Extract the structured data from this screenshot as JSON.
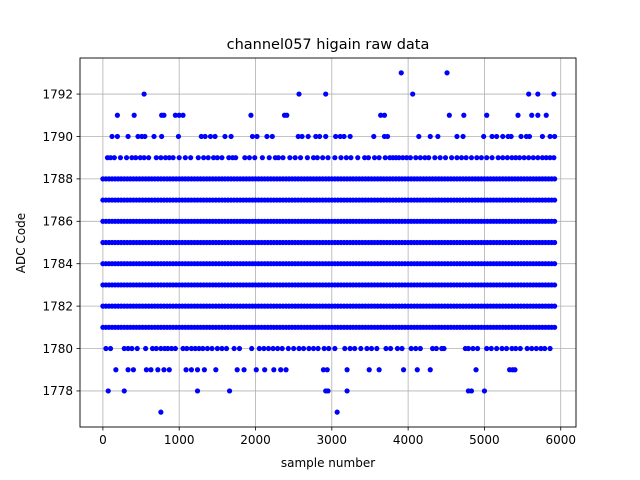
{
  "chart_data": {
    "type": "scatter",
    "title": "channel057 higain raw data",
    "xlabel": "sample number",
    "ylabel": "ADC Code",
    "xlim": [
      -300,
      6200
    ],
    "ylim": [
      1776.3,
      1793.7
    ],
    "x_ticks": [
      0,
      1000,
      2000,
      3000,
      4000,
      5000,
      6000
    ],
    "x_tick_labels": [
      "0",
      "1000",
      "2000",
      "3000",
      "4000",
      "5000",
      "6000"
    ],
    "y_ticks": [
      1778,
      1780,
      1782,
      1784,
      1786,
      1788,
      1790,
      1792
    ],
    "y_tick_labels": [
      "1778",
      "1780",
      "1782",
      "1784",
      "1786",
      "1788",
      "1790",
      "1792"
    ],
    "grid": true,
    "marker_color": "#0000ff",
    "n_samples": 5940,
    "dense_levels": [
      {
        "y": 1781,
        "x_range": [
          0,
          5940
        ]
      },
      {
        "y": 1782,
        "x_range": [
          0,
          5940
        ]
      },
      {
        "y": 1783,
        "x_range": [
          0,
          5940
        ]
      },
      {
        "y": 1784,
        "x_range": [
          0,
          5940
        ]
      },
      {
        "y": 1785,
        "x_range": [
          0,
          5940
        ]
      },
      {
        "y": 1786,
        "x_range": [
          0,
          5940
        ]
      },
      {
        "y": 1787,
        "x_range": [
          0,
          5940
        ]
      },
      {
        "y": 1788,
        "x_range": [
          0,
          5940
        ]
      }
    ],
    "sparse_levels": [
      {
        "y": 1789,
        "x": [
          60,
          100,
          150,
          230,
          310,
          380,
          430,
          490,
          540,
          600,
          700,
          760,
          820,
          870,
          920,
          1000,
          1080,
          1150,
          1250,
          1320,
          1380,
          1450,
          1500,
          1560,
          1650,
          1700,
          1740,
          1860,
          1920,
          1990,
          2090,
          2180,
          2260,
          2300,
          2360,
          2450,
          2520,
          2590,
          2680,
          2760,
          2810,
          2880,
          2950,
          3040,
          3120,
          3190,
          3250,
          3340,
          3430,
          3480,
          3560,
          3620,
          3700,
          3760,
          3800,
          3840,
          3880,
          3930,
          3980,
          4030,
          4100,
          4160,
          4220,
          4270,
          4350,
          4420,
          4490,
          4570,
          4640,
          4700,
          4760,
          4830,
          4900,
          4960,
          5030,
          5100,
          5180,
          5240,
          5300,
          5360,
          5410,
          5460,
          5520,
          5580,
          5640,
          5700,
          5760,
          5810,
          5860,
          5910
        ]
      },
      {
        "y": 1790,
        "x": [
          120,
          190,
          330,
          460,
          510,
          550,
          670,
          770,
          990,
          1290,
          1340,
          1410,
          1470,
          1600,
          1680,
          1960,
          2020,
          2150,
          2220,
          2560,
          2610,
          2690,
          2790,
          2840,
          2920,
          3050,
          3110,
          3160,
          3240,
          3550,
          3690,
          3730,
          4140,
          4290,
          4390,
          4640,
          4720,
          4990,
          5100,
          5160,
          5240,
          5310,
          5350,
          5480,
          5550,
          5590,
          5760,
          5860,
          5920
        ]
      },
      {
        "y": 1791,
        "x": [
          190,
          410,
          770,
          800,
          950,
          1000,
          1050,
          1940,
          2380,
          2410,
          3640,
          3690,
          4540,
          4730,
          5030,
          5440,
          5620,
          5700,
          5810
        ]
      },
      {
        "y": 1792,
        "x": [
          540,
          2570,
          2920,
          4060,
          5580,
          5700,
          5910
        ]
      },
      {
        "y": 1793,
        "x": [
          3910,
          4510
        ]
      },
      {
        "y": 1780,
        "x": [
          40,
          100,
          280,
          330,
          380,
          450,
          560,
          650,
          700,
          760,
          810,
          850,
          900,
          950,
          1050,
          1100,
          1160,
          1210,
          1260,
          1310,
          1370,
          1430,
          1500,
          1560,
          1620,
          1720,
          1790,
          1950,
          2050,
          2110,
          2170,
          2230,
          2290,
          2350,
          2430,
          2500,
          2570,
          2630,
          2700,
          2760,
          2820,
          2900,
          2960,
          3040,
          3170,
          3240,
          3300,
          3380,
          3460,
          3520,
          3590,
          3710,
          3770,
          3860,
          3920,
          4040,
          4100,
          4160,
          4320,
          4370,
          4440,
          4470,
          4750,
          4790,
          4850,
          4910,
          5030,
          5090,
          5160,
          5230,
          5290,
          5360,
          5410,
          5470,
          5560,
          5620,
          5680,
          5740,
          5790,
          5860
        ]
      },
      {
        "y": 1779,
        "x": [
          170,
          330,
          400,
          570,
          630,
          720,
          800,
          870,
          1090,
          1160,
          1240,
          1330,
          1480,
          1760,
          1850,
          2010,
          2120,
          2240,
          2330,
          2400,
          2890,
          2940,
          3200,
          3490,
          3620,
          3940,
          4120,
          4290,
          4890,
          5330,
          5370,
          5400
        ]
      },
      {
        "y": 1778,
        "x": [
          70,
          280,
          1240,
          1660,
          2920,
          2950,
          3200,
          4790,
          4830,
          5000
        ]
      },
      {
        "y": 1777,
        "x": [
          760,
          3070
        ]
      }
    ]
  }
}
